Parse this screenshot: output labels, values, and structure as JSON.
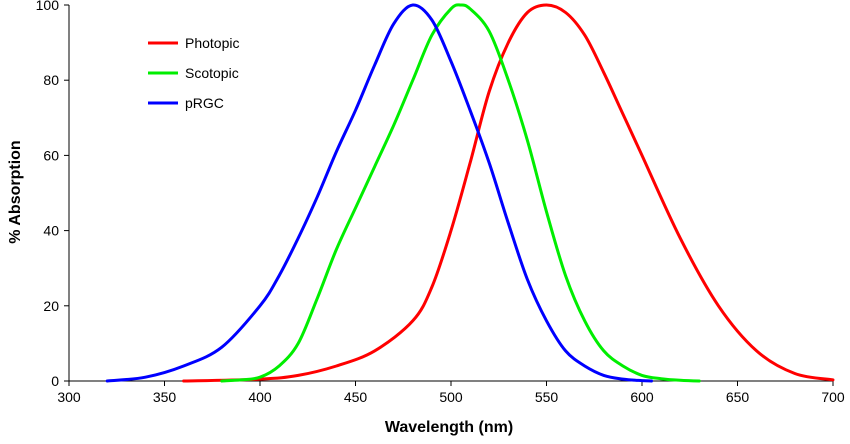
{
  "chart_data": {
    "type": "line",
    "title": "",
    "xlabel": "Wavelength (nm)",
    "ylabel": "% Absorption",
    "xlim": [
      300,
      700
    ],
    "ylim": [
      0,
      100
    ],
    "xticks": [
      300,
      350,
      400,
      450,
      500,
      550,
      600,
      650,
      700
    ],
    "yticks": [
      0,
      20,
      40,
      60,
      80,
      100
    ],
    "grid": false,
    "legend": "top-left",
    "series": [
      {
        "name": "Photopic",
        "color": "#ff0000",
        "x": [
          360,
          400,
          420,
          440,
          460,
          480,
          490,
          500,
          510,
          520,
          530,
          540,
          550,
          560,
          570,
          580,
          590,
          600,
          620,
          640,
          660,
          680,
          700
        ],
        "y": [
          0,
          0.5,
          1.5,
          4,
          8,
          16,
          25,
          40,
          58,
          77,
          90,
          98,
          100,
          98,
          92,
          82,
          71,
          60,
          38,
          20,
          8,
          2,
          0.3
        ]
      },
      {
        "name": "Scotopic",
        "color": "#00ee00",
        "x": [
          380,
          390,
          400,
          410,
          420,
          430,
          440,
          450,
          460,
          470,
          480,
          490,
          500,
          505,
          510,
          520,
          530,
          540,
          550,
          560,
          570,
          580,
          590,
          600,
          610,
          620,
          630
        ],
        "y": [
          0,
          0.3,
          1,
          4,
          10,
          22,
          35,
          46,
          57,
          68,
          80,
          92,
          99,
          100,
          99,
          93,
          80,
          64,
          45,
          28,
          16,
          8,
          4,
          1.5,
          0.6,
          0.2,
          0
        ]
      },
      {
        "name": "pRGC",
        "color": "#0000ff",
        "x": [
          320,
          340,
          360,
          380,
          400,
          410,
          420,
          430,
          440,
          450,
          460,
          470,
          480,
          490,
          500,
          510,
          520,
          530,
          540,
          550,
          560,
          570,
          580,
          590,
          600,
          605
        ],
        "y": [
          0,
          1,
          4,
          9,
          20,
          28,
          38,
          49,
          61,
          72,
          84,
          95,
          100,
          96,
          85,
          72,
          58,
          42,
          27,
          16,
          8,
          4,
          1.5,
          0.5,
          0.1,
          0
        ]
      }
    ]
  }
}
